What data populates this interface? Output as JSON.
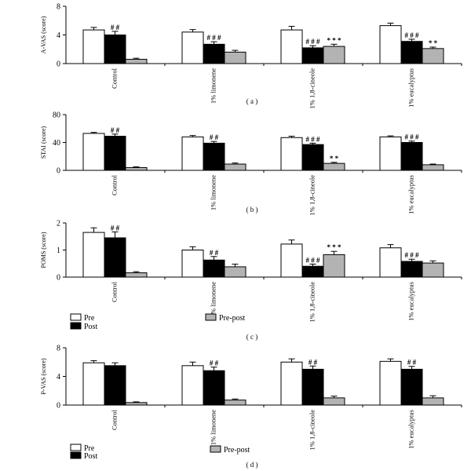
{
  "chart_data": [
    {
      "type": "bar",
      "panel_label": "( a )",
      "ylabel": "A-VAS (score)",
      "ylim": [
        0,
        8
      ],
      "yticks": [
        0,
        4,
        8
      ],
      "categories": [
        "Control",
        "1% limonene",
        "1% 1,8-cineole",
        "1% eucalyptus"
      ],
      "series": [
        {
          "name": "Pre",
          "values": [
            4.7,
            4.4,
            4.7,
            5.3
          ],
          "errors": [
            0.35,
            0.35,
            0.5,
            0.35
          ]
        },
        {
          "name": "Post",
          "values": [
            4.0,
            2.7,
            2.2,
            3.1
          ],
          "errors": [
            0.5,
            0.35,
            0.3,
            0.3
          ]
        },
        {
          "name": "Pre-post",
          "values": [
            0.6,
            1.6,
            2.4,
            2.1
          ],
          "errors": [
            0.15,
            0.25,
            0.3,
            0.2
          ]
        }
      ],
      "annotations": [
        {
          "category": 0,
          "series": 1,
          "text": "##"
        },
        {
          "category": 1,
          "series": 1,
          "text": "###"
        },
        {
          "category": 2,
          "series": 1,
          "text": "###"
        },
        {
          "category": 2,
          "series": 2,
          "text": "***"
        },
        {
          "category": 3,
          "series": 1,
          "text": "###"
        },
        {
          "category": 3,
          "series": 2,
          "text": "**"
        }
      ]
    },
    {
      "type": "bar",
      "panel_label": "( b )",
      "ylabel": "STAI (score)",
      "ylim": [
        0,
        80
      ],
      "yticks": [
        0,
        40,
        80
      ],
      "categories": [
        "Control",
        "1% limonene",
        "1% 1,8-cineole",
        "1% eucalyptus"
      ],
      "series": [
        {
          "name": "Pre",
          "values": [
            53,
            48,
            47,
            48
          ],
          "errors": [
            1.5,
            2,
            2,
            1.5
          ]
        },
        {
          "name": "Post",
          "values": [
            49,
            39,
            37,
            40
          ],
          "errors": [
            3,
            2.5,
            2,
            2
          ]
        },
        {
          "name": "Pre-post",
          "values": [
            4,
            9,
            10,
            8
          ],
          "errors": [
            1,
            1.5,
            1.5,
            1
          ]
        }
      ],
      "annotations": [
        {
          "category": 0,
          "series": 1,
          "text": "##"
        },
        {
          "category": 1,
          "series": 1,
          "text": "##"
        },
        {
          "category": 2,
          "series": 1,
          "text": "###"
        },
        {
          "category": 2,
          "series": 2,
          "text": "**"
        },
        {
          "category": 3,
          "series": 1,
          "text": "###"
        }
      ]
    },
    {
      "type": "bar",
      "panel_label": "( c )",
      "ylabel": "POMS (score)",
      "ylim": [
        0,
        2
      ],
      "yticks": [
        0,
        1,
        2
      ],
      "categories": [
        "Control",
        "1% limonene",
        "1% 1,8-cineole",
        "1% eucalyptus"
      ],
      "series": [
        {
          "name": "Pre",
          "values": [
            1.65,
            1.0,
            1.22,
            1.08
          ],
          "errors": [
            0.17,
            0.12,
            0.15,
            0.12
          ]
        },
        {
          "name": "Post",
          "values": [
            1.45,
            0.63,
            0.4,
            0.58
          ],
          "errors": [
            0.22,
            0.13,
            0.08,
            0.08
          ]
        },
        {
          "name": "Pre-post",
          "values": [
            0.16,
            0.38,
            0.83,
            0.52
          ],
          "errors": [
            0.04,
            0.1,
            0.12,
            0.08
          ]
        }
      ],
      "annotations": [
        {
          "category": 0,
          "series": 1,
          "text": "##"
        },
        {
          "category": 1,
          "series": 1,
          "text": "##"
        },
        {
          "category": 2,
          "series": 1,
          "text": "###"
        },
        {
          "category": 2,
          "series": 2,
          "text": "***"
        },
        {
          "category": 3,
          "series": 1,
          "text": "###"
        }
      ],
      "legend": [
        "Pre",
        "Post",
        "Pre-post"
      ]
    },
    {
      "type": "bar",
      "panel_label": "( d )",
      "ylabel": "P-VAS (score)",
      "ylim": [
        0,
        8
      ],
      "yticks": [
        0,
        4,
        8
      ],
      "categories": [
        "Control",
        "1% limonene",
        "1% 1,8-cineole",
        "1% eucalyptus"
      ],
      "series": [
        {
          "name": "Pre",
          "values": [
            5.9,
            5.5,
            6.0,
            6.1
          ],
          "errors": [
            0.3,
            0.5,
            0.45,
            0.35
          ]
        },
        {
          "name": "Post",
          "values": [
            5.5,
            4.8,
            5.0,
            5.0
          ],
          "errors": [
            0.4,
            0.5,
            0.45,
            0.4
          ]
        },
        {
          "name": "Pre-post",
          "values": [
            0.35,
            0.7,
            1.0,
            1.0
          ],
          "errors": [
            0.1,
            0.15,
            0.25,
            0.3
          ]
        }
      ],
      "annotations": [
        {
          "category": 1,
          "series": 1,
          "text": "##"
        },
        {
          "category": 2,
          "series": 1,
          "text": "##"
        },
        {
          "category": 3,
          "series": 1,
          "text": "##"
        }
      ],
      "legend": [
        "Pre",
        "Post",
        "Pre-post"
      ]
    }
  ],
  "colors": {
    "Pre": "#ffffff",
    "Post": "#000000",
    "Pre-post": "#b3b3b3"
  }
}
